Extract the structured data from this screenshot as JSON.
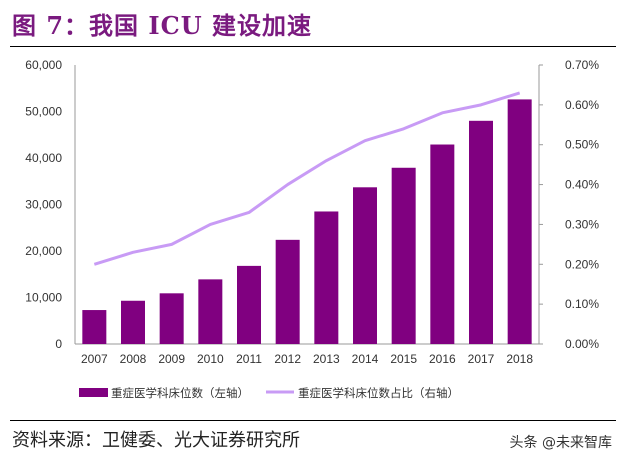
{
  "title": "图 7：我国 ICU 建设加速",
  "source": "资料来源：卫健委、光大证券研究所",
  "watermark": "头条 @未来智库",
  "chart_data": {
    "type": "bar+line",
    "categories": [
      "2007",
      "2008",
      "2009",
      "2010",
      "2011",
      "2012",
      "2013",
      "2014",
      "2015",
      "2016",
      "2017",
      "2018"
    ],
    "series": [
      {
        "name": "重症医学科床位数（左轴）",
        "type": "bar",
        "axis": "left",
        "color": "#800080",
        "values": [
          7300,
          9300,
          10900,
          13900,
          16800,
          22400,
          28500,
          33700,
          37900,
          42900,
          48000,
          52600
        ]
      },
      {
        "name": "重症医学科床位数占比（右轴）",
        "type": "line",
        "axis": "right",
        "color": "#c89bf5",
        "values": [
          0.2,
          0.23,
          0.25,
          0.3,
          0.33,
          0.4,
          0.46,
          0.51,
          0.54,
          0.58,
          0.6,
          0.63
        ]
      }
    ],
    "y_left": {
      "range": [
        0,
        60000
      ],
      "ticks": [
        "0",
        "10,000",
        "20,000",
        "30,000",
        "40,000",
        "50,000",
        "60,000"
      ]
    },
    "y_right": {
      "range": [
        0,
        0.7
      ],
      "unit": "%",
      "ticks": [
        "0.00%",
        "0.10%",
        "0.20%",
        "0.30%",
        "0.40%",
        "0.50%",
        "0.60%",
        "0.70%"
      ]
    },
    "grid": false,
    "legend_position": "bottom"
  }
}
